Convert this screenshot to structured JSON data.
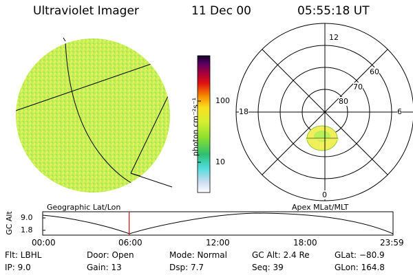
{
  "header": {
    "instrument": "Ultraviolet Imager",
    "date": "11 Dec 00",
    "time": "05:55:18 UT"
  },
  "colorbar": {
    "unit_label": "photon cm⁻²s⁻¹",
    "tick_100": "100",
    "tick_10": "10"
  },
  "polar_plot": {
    "mlt_labels": [
      "12",
      "18",
      "6",
      "0"
    ],
    "mlat_labels": [
      "60",
      "70",
      "80"
    ],
    "caption": "Apex MLat/MLT"
  },
  "geo_image": {
    "caption": "Geographic Lat/Lon"
  },
  "altitude_strip": {
    "axis_label": "GC Alt",
    "y_ticks": [
      "9.0",
      "1.8"
    ],
    "time_ticks": [
      "00:00",
      "06:00",
      "12:00",
      "18:00",
      "23:59"
    ],
    "current_time_fraction": 0.247
  },
  "footer": {
    "filter": "Flt: LBHL",
    "ip": "IP:  9.0",
    "door": "Door: Open",
    "gain": "Gain: 13",
    "mode": "Mode: Normal",
    "dsp": "Dsp:     7.7",
    "gc_alt": "GC Alt: 2.4 Re",
    "seq": "Seq: 39",
    "glat": "GLat: −80.9",
    "glon": "GLon: 164.8"
  },
  "colors": {
    "auroral_green": "#b8f05a",
    "oval_yellow": "#f2f05a",
    "time_marker": "#e00000"
  }
}
